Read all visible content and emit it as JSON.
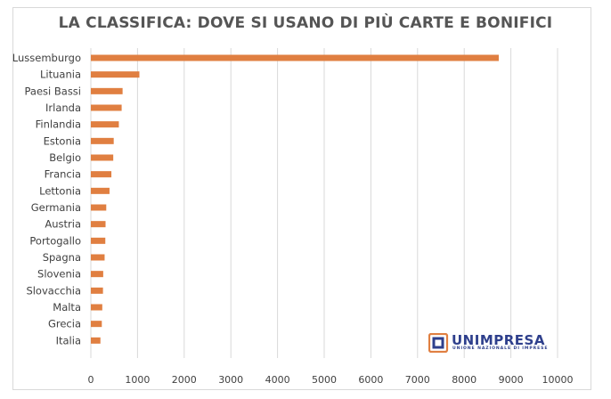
{
  "chart_data": {
    "type": "bar",
    "orientation": "horizontal",
    "title": "LA CLASSIFICA: DOVE SI USANO DI PIÙ CARTE E BONIFICI",
    "categories": [
      "Lussemburgo",
      "Lituania",
      "Paesi Bassi",
      "Irlanda",
      "Finlandia",
      "Estonia",
      "Belgio",
      "Francia",
      "Lettonia",
      "Germania",
      "Austria",
      "Portogallo",
      "Spagna",
      "Slovenia",
      "Slovacchia",
      "Malta",
      "Grecia",
      "Italia"
    ],
    "values": [
      8740,
      1040,
      680,
      660,
      600,
      490,
      480,
      440,
      400,
      330,
      315,
      310,
      295,
      265,
      260,
      245,
      235,
      205
    ],
    "xlim": [
      0,
      10000
    ],
    "xticks": [
      0,
      1000,
      2000,
      3000,
      4000,
      5000,
      6000,
      7000,
      8000,
      9000,
      10000
    ],
    "grid": true,
    "bar_color": "#e07f41",
    "grid_color": "#d9d9d9"
  },
  "logo": {
    "name": "UNIMPRESA",
    "subtitle": "UNIONE NAZIONALE DI IMPRESE",
    "color": "#2e3f8c",
    "accent": "#e07f41"
  }
}
